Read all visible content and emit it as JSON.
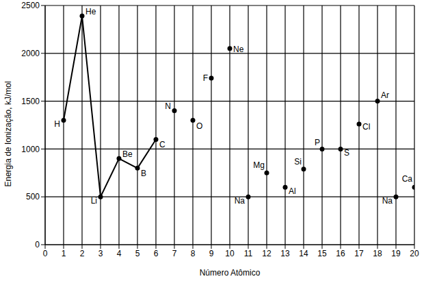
{
  "chart_data": {
    "type": "line",
    "x_label": "Número Atômico",
    "y_label": "Energia de Ionização, kJ/mol",
    "x": [
      1,
      2,
      3,
      4,
      5,
      6,
      7,
      8,
      9,
      10,
      11,
      12,
      13,
      14,
      15,
      16,
      17,
      18,
      19,
      20
    ],
    "labels": [
      "H",
      "He",
      "Li",
      "Be",
      "B",
      "C",
      "N",
      "O",
      "F",
      "Ne",
      "Na",
      "Mg",
      "Al",
      "Si",
      "P",
      "S",
      "Cl",
      "Ar",
      "Na",
      "Ca"
    ],
    "series": [
      {
        "type": "line",
        "marker": "circle",
        "color": "#000000",
        "values": [
          1300,
          2390,
          500,
          900,
          800,
          1100,
          null,
          null,
          null,
          null,
          null,
          null,
          null,
          null,
          null,
          null,
          null,
          null,
          null,
          null
        ]
      },
      {
        "type": "scatter",
        "marker": "circle",
        "color": "#000000",
        "values": [
          null,
          null,
          null,
          null,
          null,
          null,
          1400,
          1300,
          1740,
          2050,
          500,
          750,
          600,
          790,
          1000,
          1000,
          1260,
          1500,
          500,
          600
        ]
      }
    ],
    "xlim": [
      0,
      20
    ],
    "xticks": [
      0,
      1,
      2,
      3,
      4,
      5,
      6,
      7,
      8,
      9,
      10,
      11,
      12,
      13,
      14,
      15,
      16,
      17,
      18,
      19,
      20
    ],
    "ylim": [
      0,
      2500
    ],
    "yticks": [
      0,
      500,
      1000,
      1500,
      2000,
      2500
    ],
    "grid": true
  }
}
